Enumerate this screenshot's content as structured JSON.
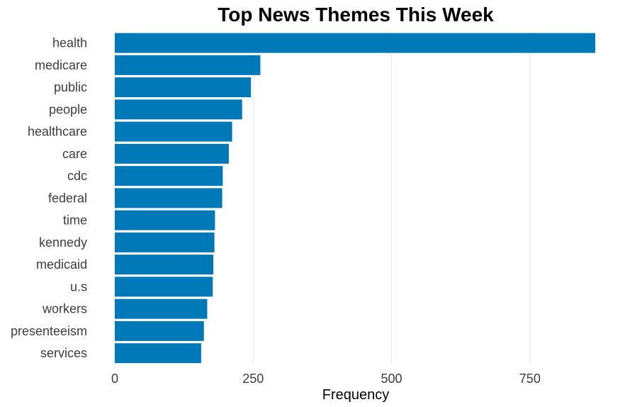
{
  "chart_data": {
    "type": "bar",
    "orientation": "horizontal",
    "title": "Top News Themes This Week",
    "xlabel": "Frequency",
    "ylabel": "",
    "categories": [
      "health",
      "medicare",
      "public",
      "people",
      "healthcare",
      "care",
      "cdc",
      "federal",
      "time",
      "kennedy",
      "medicaid",
      "u.s",
      "workers",
      "presenteeism",
      "services"
    ],
    "values": [
      868,
      263,
      246,
      230,
      212,
      206,
      195,
      194,
      181,
      180,
      178,
      177,
      167,
      161,
      156
    ],
    "xlim": [
      0,
      868
    ],
    "xticks": [
      0,
      250,
      500,
      750
    ],
    "xtick_labels": [
      "0",
      "250",
      "500",
      "750"
    ],
    "grid": true,
    "legend": "none",
    "bar_color": "#0079b9",
    "grid_color": "#e6e6e6"
  }
}
